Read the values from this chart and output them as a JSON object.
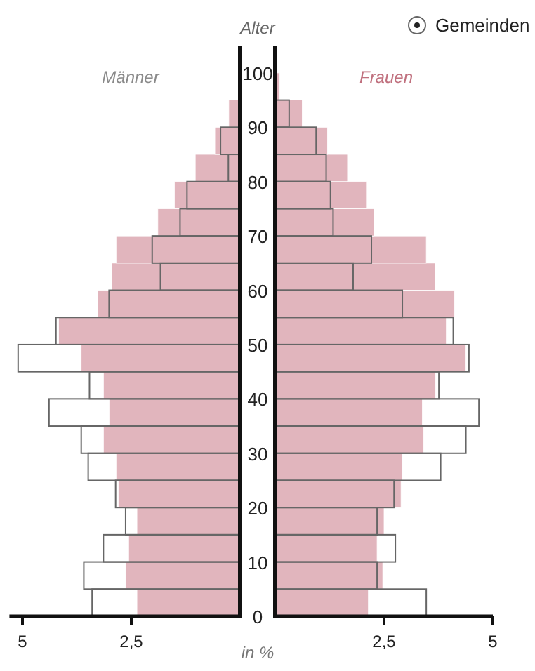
{
  "chart_data": [
    {
      "type": "bar",
      "orientation": "horizontal",
      "title": "Männer",
      "x": [
        2.5,
        7.5,
        12.5,
        17.5,
        22.5,
        27.5,
        32.5,
        37.5,
        42.5,
        47.5,
        52.5,
        57.5,
        62.5,
        67.5,
        72.5,
        77.5,
        82.5,
        87.5,
        92.5
      ],
      "xlim": [
        5.3,
        0
      ],
      "xticks": [
        5,
        {
          "value": 2.5,
          "label": "2,5"
        }
      ],
      "ylim": [
        0,
        105
      ],
      "tick_labels": "x",
      "series": [
        {
          "color": "#e1b5bd",
          "values": [
            2.37,
            2.63,
            2.56,
            2.37,
            2.8,
            2.85,
            3.14,
            3.01,
            3.14,
            3.65,
            4.17,
            3.27,
            2.95,
            2.85,
            1.89,
            1.51,
            1.03,
            0.58,
            0.26
          ]
        },
        {
          "color": "#666666",
          "values": [
            3.4,
            3.59,
            3.14,
            2.63,
            2.86,
            3.49,
            3.65,
            4.39,
            3.46,
            5.1,
            4.23,
            3.01,
            1.83,
            2.02,
            1.38,
            1.22,
            0.27,
            0.45,
            null
          ]
        }
      ]
    },
    {
      "type": "bar",
      "orientation": "horizontal",
      "title": "Frauen",
      "ylabel": "Alter",
      "xlabel": "in %",
      "legend": "top right",
      "x": [
        2.5,
        7.5,
        12.5,
        17.5,
        22.5,
        27.5,
        32.5,
        37.5,
        42.5,
        47.5,
        52.5,
        57.5,
        62.5,
        67.5,
        72.5,
        77.5,
        82.5,
        87.5,
        92.5,
        97.5
      ],
      "xlim": [
        0,
        5
      ],
      "xticks": [
        {
          "value": 2.5,
          "label": "2,5"
        },
        5
      ],
      "ylim": [
        0,
        105
      ],
      "yticks": [
        0,
        10,
        20,
        30,
        40,
        50,
        60,
        70,
        80,
        90,
        100
      ],
      "series": [
        {
          "color": "#e1b5bd",
          "values": [
            2.14,
            2.47,
            2.34,
            2.5,
            2.89,
            2.92,
            3.41,
            3.38,
            3.68,
            4.38,
            3.93,
            4.12,
            3.67,
            3.47,
            2.27,
            2.11,
            1.66,
            1.2,
            0.62,
            0.1
          ]
        },
        {
          "name": "Gemeinden",
          "color": "#666666",
          "values": [
            3.47,
            2.34,
            2.76,
            2.34,
            2.73,
            3.8,
            4.38,
            4.68,
            3.76,
            4.45,
            4.09,
            2.92,
            1.79,
            2.21,
            1.33,
            1.27,
            1.17,
            0.94,
            0.32,
            null
          ]
        }
      ]
    }
  ]
}
